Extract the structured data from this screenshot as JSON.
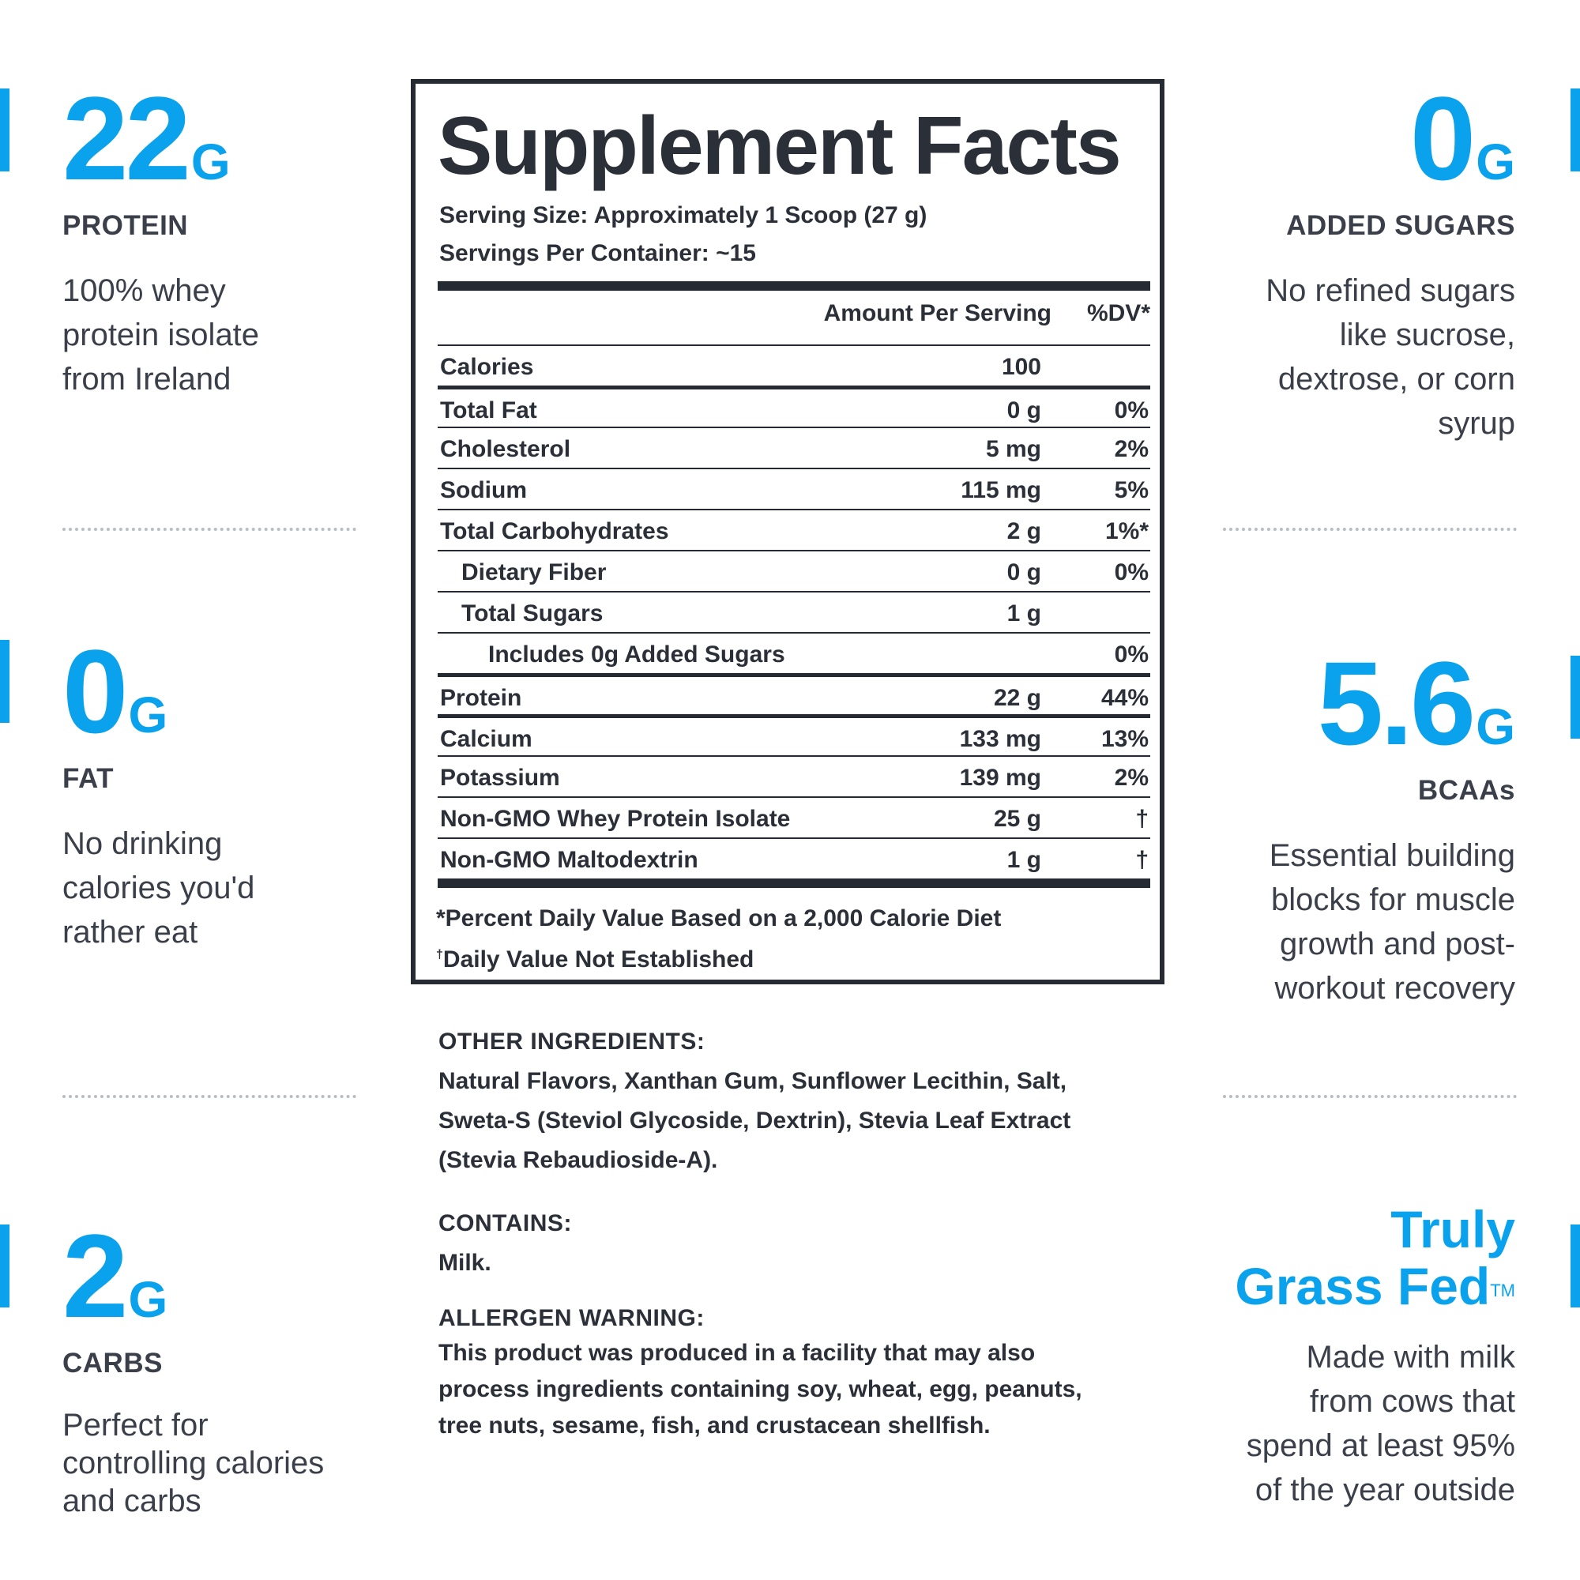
{
  "colors": {
    "accent": "#0aa2ec",
    "text": "#3a3f4a",
    "panel_border": "#252a33",
    "divider": "#b9bcc2"
  },
  "left_stats": [
    {
      "value": "22",
      "unit": "G",
      "label": "PROTEIN",
      "desc": [
        "100% whey",
        "protein isolate",
        "from Ireland"
      ]
    },
    {
      "value": "0",
      "unit": "G",
      "label": "FAT",
      "desc": [
        "No drinking",
        "calories you'd",
        "rather eat"
      ]
    },
    {
      "value": "2",
      "unit": "G",
      "label": "CARBS",
      "desc": [
        "Perfect for",
        "controlling calories",
        "and carbs"
      ]
    }
  ],
  "right_stats": [
    {
      "value": "0",
      "unit": "G",
      "label": "ADDED SUGARS",
      "desc": [
        "No refined sugars",
        "like sucrose,",
        "dextrose, or corn",
        "syrup"
      ]
    },
    {
      "value": "5.6",
      "unit": "G",
      "label": "BCAAs",
      "desc": [
        "Essential building",
        "blocks for muscle",
        "growth and post-",
        "workout recovery"
      ]
    }
  ],
  "grass_fed": {
    "title_line1": "Truly",
    "title_line2": "Grass Fed",
    "trademark": "TM",
    "desc": [
      "Made with milk",
      "from cows that",
      "spend at least 95%",
      "of the year outside"
    ]
  },
  "facts": {
    "title": "Supplement Facts",
    "serving_size": "Serving Size: Approximately 1 Scoop (27 g)",
    "servings_per_container": "Servings Per Container: ~15",
    "amount_header": "Amount Per Serving",
    "dv_header": "%DV*",
    "rows": [
      {
        "name": "Calories",
        "amount": "100",
        "dv": ""
      },
      {
        "name": "Total Fat",
        "amount": "0 g",
        "dv": "0%"
      },
      {
        "name": "Cholesterol",
        "amount": "5 mg",
        "dv": "2%"
      },
      {
        "name": "Sodium",
        "amount": "115 mg",
        "dv": "5%"
      },
      {
        "name": "Total Carbohydrates",
        "amount": "2 g",
        "dv": "1%*"
      },
      {
        "name": "Dietary Fiber",
        "amount": "0 g",
        "dv": "0%"
      },
      {
        "name": "Total Sugars",
        "amount": "1 g",
        "dv": ""
      },
      {
        "name": "Includes 0g Added Sugars",
        "amount": "",
        "dv": "0%"
      },
      {
        "name": "Protein",
        "amount": "22 g",
        "dv": "44%"
      },
      {
        "name": "Calcium",
        "amount": "133 mg",
        "dv": "13%"
      },
      {
        "name": "Potassium",
        "amount": "139 mg",
        "dv": "2%"
      },
      {
        "name": "Non-GMO Whey Protein Isolate",
        "amount": "25 g",
        "dv": "†"
      },
      {
        "name": "Non-GMO Maltodextrin",
        "amount": "1 g",
        "dv": "†"
      }
    ],
    "footnote_1": "*Percent Daily Value Based on a 2,000 Calorie Diet",
    "footnote_2_mark": "†",
    "footnote_2": "Daily Value Not Established"
  },
  "ingredients": {
    "other_heading": "OTHER INGREDIENTS:",
    "other_lines": [
      "Natural Flavors, Xanthan Gum, Sunflower Lecithin, Salt,",
      "Sweta-S (Steviol Glycoside, Dextrin), Stevia Leaf Extract",
      "(Stevia Rebaudioside-A)."
    ],
    "contains_heading": "CONTAINS:",
    "contains_text": "Milk.",
    "allergen_heading": "ALLERGEN WARNING:",
    "allergen_lines": [
      "This product was produced in a facility that may also",
      "process ingredients containing soy, wheat, egg, peanuts,",
      "tree nuts, sesame, fish, and crustacean shellfish."
    ]
  }
}
